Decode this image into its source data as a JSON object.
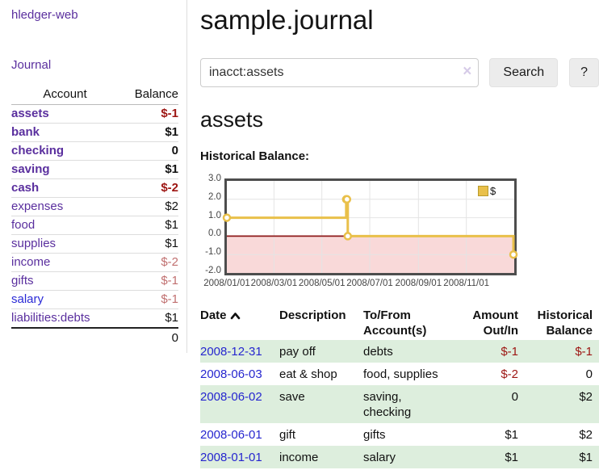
{
  "sidebar": {
    "app_title": "hledger-web",
    "nav_journal": "Journal",
    "columns": [
      "Account",
      "Balance"
    ],
    "accounts": [
      {
        "name": "assets",
        "level": 1,
        "bold": true,
        "link": "purple",
        "balance": "$-1",
        "balance_color": "dark-red"
      },
      {
        "name": "bank",
        "level": 2,
        "bold": true,
        "link": "purple",
        "balance": "$1",
        "balance_color": "black"
      },
      {
        "name": "checking",
        "level": 3,
        "bold": true,
        "link": "purple",
        "balance": "0",
        "balance_color": "black"
      },
      {
        "name": "saving",
        "level": 3,
        "bold": true,
        "link": "purple",
        "balance": "$1",
        "balance_color": "black"
      },
      {
        "name": "cash",
        "level": 2,
        "bold": true,
        "link": "purple",
        "balance": "$-2",
        "balance_color": "dark-red"
      },
      {
        "name": "expenses",
        "level": 1,
        "bold": false,
        "link": "purple",
        "balance": "$2",
        "balance_color": "black"
      },
      {
        "name": "food",
        "level": 2,
        "bold": false,
        "link": "purple",
        "balance": "$1",
        "balance_color": "black"
      },
      {
        "name": "supplies",
        "level": 2,
        "bold": false,
        "link": "purple",
        "balance": "$1",
        "balance_color": "black"
      },
      {
        "name": "income",
        "level": 1,
        "bold": false,
        "link": "purple",
        "balance": "$-2",
        "balance_color": "soft-red"
      },
      {
        "name": "gifts",
        "level": 2,
        "bold": false,
        "link": "purple",
        "balance": "$-1",
        "balance_color": "soft-red"
      },
      {
        "name": "salary",
        "level": 2,
        "bold": false,
        "link": "blue",
        "balance": "$-1",
        "balance_color": "soft-red"
      },
      {
        "name": "liabilities:debts",
        "level": 1,
        "bold": false,
        "link": "purple",
        "balance": "$1",
        "balance_color": "black"
      }
    ],
    "total": "0"
  },
  "main": {
    "title": "sample.journal",
    "search": {
      "value": "inacct:assets",
      "clear_icon": "×",
      "button_label": "Search",
      "help_label": "?"
    },
    "account_heading": "assets",
    "chart_title": "Historical Balance:"
  },
  "chart_data": {
    "type": "line",
    "step": true,
    "title": "Historical Balance:",
    "series": [
      {
        "name": "$",
        "color": "#e9c04a",
        "points": [
          [
            "2008-01-01",
            1
          ],
          [
            "2008-06-01",
            2
          ],
          [
            "2008-06-02",
            2
          ],
          [
            "2008-06-03",
            0
          ],
          [
            "2008-12-31",
            -1
          ]
        ]
      }
    ],
    "xlim": [
      "2008-01-01",
      "2009-01-01"
    ],
    "ylim": [
      -2,
      3
    ],
    "x_ticks": [
      "2008/01/01",
      "2008/03/01",
      "2008/05/01",
      "2008/07/01",
      "2008/09/01",
      "2008/11/01"
    ],
    "y_ticks": [
      3.0,
      2.0,
      1.0,
      0.0,
      -1.0,
      -2.0
    ],
    "grid": true,
    "grid_color": "#e4e4e4",
    "negative_region_color": "#f9d9d9",
    "zero_line_color": "#8e1b1b",
    "legend": {
      "label": "$",
      "position": "top-right"
    }
  },
  "register": {
    "columns": [
      "Date",
      "Description",
      "To/From\nAccount(s)",
      "Amount\nOut/In",
      "Historical\nBalance"
    ],
    "sort_column": "Date",
    "sort_direction": "ascending",
    "rows": [
      {
        "date": "2008-12-31",
        "description": "pay off",
        "accounts": "debts",
        "amount": "$-1",
        "amount_color": "dark-red",
        "balance": "$-1",
        "balance_color": "dark-red",
        "shaded": true
      },
      {
        "date": "2008-06-03",
        "description": "eat & shop",
        "accounts": "food, supplies",
        "amount": "$-2",
        "amount_color": "dark-red",
        "balance": "0",
        "balance_color": "black",
        "shaded": false
      },
      {
        "date": "2008-06-02",
        "description": "save",
        "accounts": "saving,\nchecking",
        "amount": "0",
        "amount_color": "black",
        "balance": "$2",
        "balance_color": "black",
        "shaded": true
      },
      {
        "date": "2008-06-01",
        "description": "gift",
        "accounts": "gifts",
        "amount": "$1",
        "amount_color": "black",
        "balance": "$2",
        "balance_color": "black",
        "shaded": false
      },
      {
        "date": "2008-01-01",
        "description": "income",
        "accounts": "salary",
        "amount": "$1",
        "amount_color": "black",
        "balance": "$1",
        "balance_color": "black",
        "shaded": true
      }
    ]
  },
  "colors": {
    "accent_purple": "#5a2f9e",
    "link_blue": "#2626cf",
    "negative_dark_red": "#9d1512",
    "negative_soft_red": "#c17070",
    "row_green": "#ddeedd",
    "chart_yellow": "#e9c04a",
    "chart_negative_region": "#f9d9d9",
    "chart_zero_line": "#8e1b1b"
  }
}
